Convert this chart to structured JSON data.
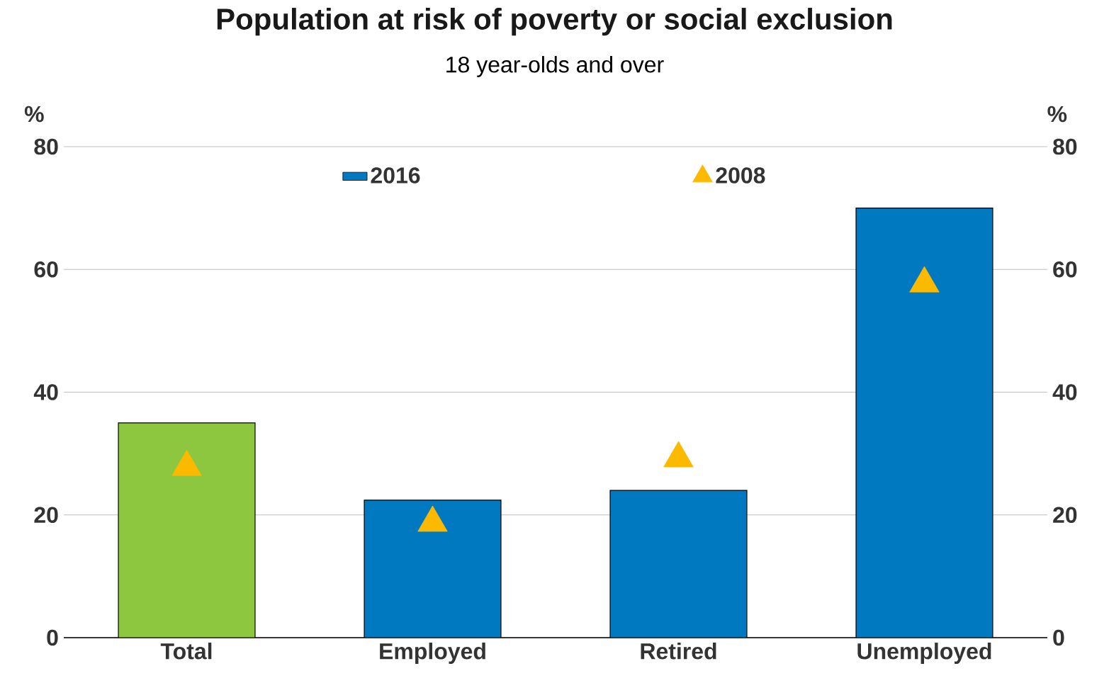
{
  "chart_data": {
    "type": "bar",
    "title": "Population at risk of poverty or social exclusion",
    "subtitle": "18 year-olds and over",
    "ylabel": "%",
    "y2label": "%",
    "categories": [
      "Total",
      "Employed",
      "Retired",
      "Unemployed"
    ],
    "series": [
      {
        "name": "2016",
        "color": "#0079c1",
        "colors": [
          "#8dc63f",
          "#0079c1",
          "#0079c1",
          "#0079c1"
        ],
        "values": [
          35,
          22.4,
          24,
          70
        ]
      },
      {
        "name": "2008",
        "type": "scatter",
        "marker": "triangle",
        "color": "#fbb900",
        "values": [
          27.8,
          18.7,
          29.2,
          57.7
        ]
      }
    ],
    "ylim": [
      0,
      80
    ],
    "yticks": [
      0,
      20,
      40,
      60,
      80
    ],
    "y2lim": [
      0,
      80
    ],
    "y2ticks": [
      0,
      20,
      40,
      60,
      80
    ],
    "grid": "y",
    "legend": "top"
  }
}
